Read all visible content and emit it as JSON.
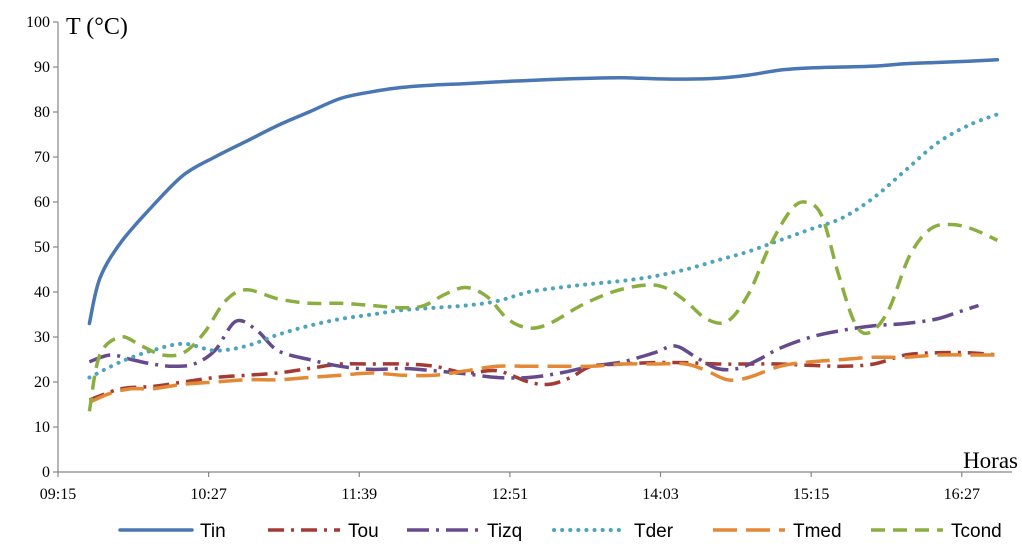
{
  "chart_data": {
    "type": "line",
    "ylabel": "T (°C)",
    "xlabel": "Horas",
    "ylim": [
      0,
      100
    ],
    "y_ticks": [
      0,
      10,
      20,
      30,
      40,
      50,
      60,
      70,
      80,
      90,
      100
    ],
    "xlim": [
      "09:15",
      "16:51"
    ],
    "x_ticks": [
      "09:15",
      "10:27",
      "11:39",
      "12:51",
      "14:03",
      "15:15",
      "16:27"
    ],
    "grid": false,
    "legend_position": "bottom",
    "series": [
      {
        "name": "Tin",
        "color": "#4A76B3",
        "dash": "solid",
        "points": [
          [
            "09:30",
            33
          ],
          [
            "09:35",
            43
          ],
          [
            "09:45",
            51
          ],
          [
            "10:00",
            59
          ],
          [
            "10:15",
            66
          ],
          [
            "10:30",
            70
          ],
          [
            "10:45",
            73.5
          ],
          [
            "11:00",
            77
          ],
          [
            "11:15",
            80
          ],
          [
            "11:30",
            83
          ],
          [
            "11:45",
            84.5
          ],
          [
            "12:00",
            85.5
          ],
          [
            "12:15",
            86
          ],
          [
            "12:30",
            86.3
          ],
          [
            "12:45",
            86.7
          ],
          [
            "13:00",
            87
          ],
          [
            "13:15",
            87.3
          ],
          [
            "13:30",
            87.5
          ],
          [
            "13:45",
            87.6
          ],
          [
            "14:00",
            87.4
          ],
          [
            "14:15",
            87.3
          ],
          [
            "14:30",
            87.5
          ],
          [
            "14:45",
            88.2
          ],
          [
            "15:00",
            89.3
          ],
          [
            "15:15",
            89.8
          ],
          [
            "15:30",
            90
          ],
          [
            "15:45",
            90.2
          ],
          [
            "16:00",
            90.7
          ],
          [
            "16:15",
            91
          ],
          [
            "16:30",
            91.3
          ],
          [
            "16:44",
            91.6
          ]
        ]
      },
      {
        "name": "Tou",
        "color": "#A33A33",
        "dash": "dashdot",
        "points": [
          [
            "09:30",
            16
          ],
          [
            "09:45",
            18.5
          ],
          [
            "10:00",
            19
          ],
          [
            "10:15",
            20
          ],
          [
            "10:30",
            21
          ],
          [
            "10:45",
            21.5
          ],
          [
            "11:00",
            22
          ],
          [
            "11:15",
            23
          ],
          [
            "11:30",
            24
          ],
          [
            "11:45",
            24
          ],
          [
            "12:00",
            24
          ],
          [
            "12:15",
            23.5
          ],
          [
            "12:30",
            22
          ],
          [
            "12:45",
            22.5
          ],
          [
            "13:00",
            20
          ],
          [
            "13:10",
            19.5
          ],
          [
            "13:20",
            21
          ],
          [
            "13:30",
            23.5
          ],
          [
            "13:45",
            24
          ],
          [
            "14:00",
            24.3
          ],
          [
            "14:15",
            24.3
          ],
          [
            "14:30",
            24
          ],
          [
            "14:45",
            24
          ],
          [
            "15:00",
            24
          ],
          [
            "15:15",
            23.7
          ],
          [
            "15:30",
            23.5
          ],
          [
            "15:45",
            24
          ],
          [
            "16:00",
            26
          ],
          [
            "16:15",
            26.5
          ],
          [
            "16:30",
            26.5
          ],
          [
            "16:44",
            26
          ]
        ]
      },
      {
        "name": "Tizq",
        "color": "#674A8C",
        "dash": "longdashdot",
        "points": [
          [
            "09:30",
            24.5
          ],
          [
            "09:40",
            26
          ],
          [
            "09:50",
            25
          ],
          [
            "10:00",
            24
          ],
          [
            "10:10",
            23.5
          ],
          [
            "10:20",
            24
          ],
          [
            "10:30",
            27
          ],
          [
            "10:40",
            33.5
          ],
          [
            "10:50",
            31.5
          ],
          [
            "11:00",
            27
          ],
          [
            "11:15",
            25
          ],
          [
            "11:30",
            23.5
          ],
          [
            "11:45",
            22.8
          ],
          [
            "12:00",
            23
          ],
          [
            "12:15",
            22.5
          ],
          [
            "12:30",
            21.8
          ],
          [
            "12:45",
            21
          ],
          [
            "13:00",
            21
          ],
          [
            "13:15",
            22
          ],
          [
            "13:30",
            23.5
          ],
          [
            "13:45",
            24.5
          ],
          [
            "14:00",
            26.5
          ],
          [
            "14:10",
            28
          ],
          [
            "14:20",
            25.5
          ],
          [
            "14:30",
            23
          ],
          [
            "14:40",
            23
          ],
          [
            "14:50",
            25
          ],
          [
            "15:00",
            27.5
          ],
          [
            "15:15",
            30
          ],
          [
            "15:30",
            31.5
          ],
          [
            "15:45",
            32.5
          ],
          [
            "16:00",
            33
          ],
          [
            "16:15",
            34
          ],
          [
            "16:25",
            35.5
          ],
          [
            "16:35",
            37
          ]
        ]
      },
      {
        "name": "Tder",
        "color": "#4EA4BE",
        "dash": "dotted",
        "points": [
          [
            "09:30",
            21
          ],
          [
            "09:45",
            24.5
          ],
          [
            "10:00",
            27
          ],
          [
            "10:15",
            28.5
          ],
          [
            "10:30",
            27
          ],
          [
            "10:45",
            28
          ],
          [
            "11:00",
            30.5
          ],
          [
            "11:15",
            32.5
          ],
          [
            "11:30",
            34
          ],
          [
            "11:45",
            35
          ],
          [
            "12:00",
            36
          ],
          [
            "12:15",
            36.5
          ],
          [
            "12:30",
            37
          ],
          [
            "12:45",
            38
          ],
          [
            "13:00",
            40
          ],
          [
            "13:15",
            41
          ],
          [
            "13:30",
            41.8
          ],
          [
            "13:45",
            42.5
          ],
          [
            "14:00",
            43.5
          ],
          [
            "14:15",
            45
          ],
          [
            "14:30",
            47
          ],
          [
            "14:45",
            49
          ],
          [
            "15:00",
            51.5
          ],
          [
            "15:15",
            54
          ],
          [
            "15:30",
            56.5
          ],
          [
            "15:45",
            61
          ],
          [
            "16:00",
            67
          ],
          [
            "16:15",
            73
          ],
          [
            "16:30",
            77
          ],
          [
            "16:44",
            79.5
          ]
        ]
      },
      {
        "name": "Tmed",
        "color": "#E38835",
        "dash": "longdash",
        "points": [
          [
            "09:30",
            15.5
          ],
          [
            "09:40",
            17.5
          ],
          [
            "09:50",
            18.5
          ],
          [
            "10:00",
            18.5
          ],
          [
            "10:15",
            19.5
          ],
          [
            "10:30",
            20
          ],
          [
            "10:45",
            20.5
          ],
          [
            "11:00",
            20.5
          ],
          [
            "11:15",
            21
          ],
          [
            "11:30",
            21.5
          ],
          [
            "11:45",
            22
          ],
          [
            "12:00",
            21.5
          ],
          [
            "12:15",
            21.5
          ],
          [
            "12:30",
            22.5
          ],
          [
            "12:45",
            23.5
          ],
          [
            "13:00",
            23.5
          ],
          [
            "13:15",
            23.5
          ],
          [
            "13:30",
            23.5
          ],
          [
            "13:45",
            24
          ],
          [
            "14:00",
            24
          ],
          [
            "14:15",
            24
          ],
          [
            "14:25",
            22.5
          ],
          [
            "14:35",
            20.5
          ],
          [
            "14:45",
            21
          ],
          [
            "15:00",
            23.5
          ],
          [
            "15:15",
            24.5
          ],
          [
            "15:30",
            25
          ],
          [
            "15:45",
            25.5
          ],
          [
            "16:00",
            25.5
          ],
          [
            "16:15",
            26
          ],
          [
            "16:30",
            26
          ],
          [
            "16:44",
            26
          ]
        ]
      },
      {
        "name": "Tcond",
        "color": "#8BAE40",
        "dash": "dashed",
        "points": [
          [
            "09:30",
            13.5
          ],
          [
            "09:35",
            26
          ],
          [
            "09:45",
            30
          ],
          [
            "09:55",
            28
          ],
          [
            "10:05",
            26
          ],
          [
            "10:15",
            26.5
          ],
          [
            "10:25",
            31
          ],
          [
            "10:35",
            38
          ],
          [
            "10:45",
            40.5
          ],
          [
            "11:00",
            38.5
          ],
          [
            "11:15",
            37.5
          ],
          [
            "11:30",
            37.5
          ],
          [
            "11:45",
            37
          ],
          [
            "12:00",
            36.5
          ],
          [
            "12:10",
            37
          ],
          [
            "12:20",
            39.5
          ],
          [
            "12:30",
            41
          ],
          [
            "12:40",
            39
          ],
          [
            "12:50",
            34
          ],
          [
            "13:00",
            32
          ],
          [
            "13:10",
            33
          ],
          [
            "13:25",
            37
          ],
          [
            "13:40",
            40
          ],
          [
            "13:55",
            41.5
          ],
          [
            "14:05",
            41
          ],
          [
            "14:15",
            38
          ],
          [
            "14:25",
            34
          ],
          [
            "14:35",
            33.5
          ],
          [
            "14:45",
            39.5
          ],
          [
            "14:55",
            50
          ],
          [
            "15:05",
            58
          ],
          [
            "15:12",
            60
          ],
          [
            "15:20",
            57
          ],
          [
            "15:28",
            44
          ],
          [
            "15:36",
            33
          ],
          [
            "15:43",
            31
          ],
          [
            "15:52",
            36
          ],
          [
            "16:02",
            48
          ],
          [
            "16:12",
            54
          ],
          [
            "16:22",
            55
          ],
          [
            "16:32",
            54
          ],
          [
            "16:44",
            51.5
          ]
        ]
      }
    ]
  }
}
